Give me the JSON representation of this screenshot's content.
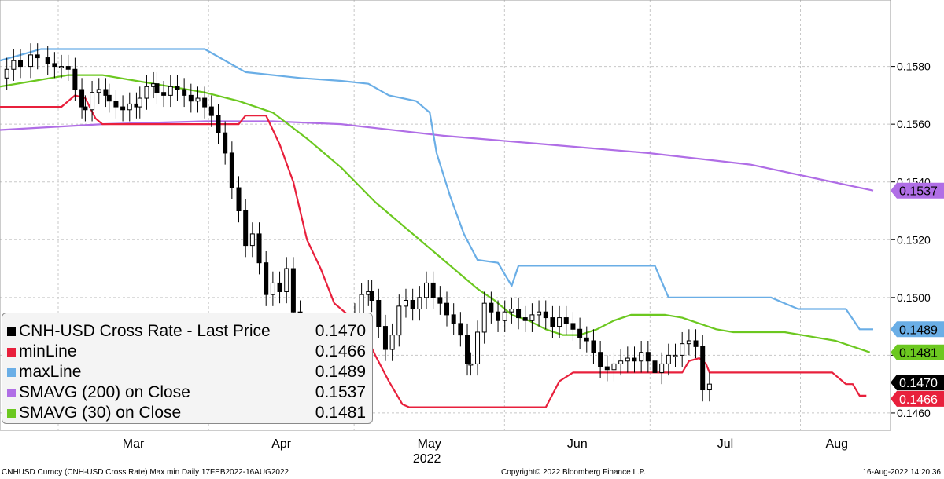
{
  "chart_data": {
    "type": "line",
    "x": {
      "start_date": "2022-02-17",
      "end_date": "2022-08-16",
      "month_labels": [
        "Mar",
        "Apr",
        "May",
        "Jun",
        "Jul",
        "Aug"
      ],
      "year_label": "2022"
    },
    "y_axis": {
      "side": "right",
      "range": [
        0.1454,
        0.1603
      ],
      "ticks": [
        "0.1460",
        "0.1480",
        "0.1500",
        "0.1520",
        "0.1540",
        "0.1560",
        "0.1580"
      ]
    },
    "grid": true,
    "series": [
      {
        "name": "CNH-USD Cross Rate - Last Price",
        "value": "0.1470",
        "color": "#000000",
        "style": "candlestick",
        "closes": [
          [
            2,
            0.1579
          ],
          [
            4,
            0.1582
          ],
          [
            6,
            0.158
          ],
          [
            9,
            0.1584
          ],
          [
            11,
            0.1583
          ],
          [
            14,
            0.1581
          ],
          [
            16,
            0.158
          ],
          [
            18,
            0.158
          ],
          [
            20,
            0.1579
          ],
          [
            22,
            0.1572
          ],
          [
            24,
            0.1566
          ],
          [
            25,
            0.1565
          ],
          [
            27,
            0.1571
          ],
          [
            29,
            0.1572
          ],
          [
            31,
            0.157
          ],
          [
            32,
            0.1568
          ],
          [
            34,
            0.1566
          ],
          [
            36,
            0.1565
          ],
          [
            38,
            0.1567
          ],
          [
            40,
            0.1566
          ],
          [
            41,
            0.1569
          ],
          [
            43,
            0.1573
          ],
          [
            45,
            0.1574
          ],
          [
            46,
            0.1571
          ],
          [
            48,
            0.157
          ],
          [
            50,
            0.1573
          ],
          [
            52,
            0.1572
          ],
          [
            54,
            0.157
          ],
          [
            56,
            0.1568
          ],
          [
            58,
            0.1569
          ],
          [
            60,
            0.1566
          ],
          [
            62,
            0.1563
          ],
          [
            64,
            0.1557
          ],
          [
            66,
            0.155
          ],
          [
            68,
            0.1538
          ],
          [
            70,
            0.153
          ],
          [
            72,
            0.1518
          ],
          [
            74,
            0.1522
          ],
          [
            76,
            0.1512
          ],
          [
            78,
            0.1501
          ],
          [
            80,
            0.1505
          ],
          [
            82,
            0.1502
          ],
          [
            84,
            0.151
          ],
          [
            86,
            0.1495
          ],
          [
            88,
            0.1488
          ],
          [
            90,
            0.1478
          ],
          [
            92,
            0.147
          ],
          [
            94,
            0.1465
          ],
          [
            96,
            0.1476
          ],
          [
            98,
            0.1484
          ],
          [
            100,
            0.1488
          ],
          [
            102,
            0.1488
          ],
          [
            104,
            0.1494
          ],
          [
            106,
            0.1501
          ],
          [
            108,
            0.1502
          ],
          [
            109,
            0.1499
          ],
          [
            111,
            0.149
          ],
          [
            113,
            0.1482
          ],
          [
            115,
            0.1487
          ],
          [
            117,
            0.1497
          ],
          [
            119,
            0.1499
          ],
          [
            121,
            0.1496
          ],
          [
            123,
            0.15
          ],
          [
            125,
            0.1505
          ],
          [
            127,
            0.15
          ],
          [
            129,
            0.1498
          ],
          [
            131,
            0.1494
          ],
          [
            133,
            0.1491
          ],
          [
            135,
            0.1487
          ],
          [
            137,
            0.1477
          ],
          [
            138,
            0.1477
          ],
          [
            140,
            0.1488
          ],
          [
            142,
            0.1498
          ],
          [
            144,
            0.1495
          ],
          [
            146,
            0.1492
          ],
          [
            148,
            0.1495
          ],
          [
            150,
            0.1496
          ],
          [
            152,
            0.1493
          ],
          [
            154,
            0.1492
          ],
          [
            156,
            0.1494
          ],
          [
            158,
            0.1495
          ],
          [
            160,
            0.1493
          ],
          [
            162,
            0.149
          ],
          [
            164,
            0.1493
          ],
          [
            166,
            0.1491
          ],
          [
            168,
            0.1489
          ],
          [
            170,
            0.1486
          ],
          [
            172,
            0.1485
          ],
          [
            174,
            0.1481
          ],
          [
            176,
            0.1476
          ],
          [
            178,
            0.1475
          ],
          [
            180,
            0.1477
          ],
          [
            182,
            0.1478
          ],
          [
            184,
            0.1479
          ],
          [
            186,
            0.1478
          ],
          [
            188,
            0.1481
          ],
          [
            190,
            0.1478
          ],
          [
            192,
            0.1474
          ],
          [
            194,
            0.1477
          ],
          [
            196,
            0.148
          ],
          [
            198,
            0.148
          ],
          [
            200,
            0.1484
          ],
          [
            202,
            0.1485
          ],
          [
            204,
            0.1483
          ],
          [
            206,
            0.1468
          ],
          [
            208,
            0.147
          ]
        ]
      },
      {
        "name": "minLine",
        "value": "0.1466",
        "color": "#e8203c",
        "style": "line",
        "points": [
          [
            0,
            0.1566
          ],
          [
            18,
            0.1566
          ],
          [
            22,
            0.157
          ],
          [
            25,
            0.1569
          ],
          [
            28,
            0.1562
          ],
          [
            30,
            0.156
          ],
          [
            48,
            0.156
          ],
          [
            70,
            0.156
          ],
          [
            72,
            0.1563
          ],
          [
            78,
            0.1563
          ],
          [
            82,
            0.1553
          ],
          [
            86,
            0.154
          ],
          [
            90,
            0.152
          ],
          [
            94,
            0.151
          ],
          [
            98,
            0.1498
          ],
          [
            102,
            0.1494
          ],
          [
            106,
            0.149
          ],
          [
            110,
            0.148
          ],
          [
            114,
            0.1471
          ],
          [
            118,
            0.1463
          ],
          [
            120,
            0.1462
          ],
          [
            160,
            0.1462
          ],
          [
            164,
            0.1471
          ],
          [
            168,
            0.1474
          ],
          [
            200,
            0.1474
          ],
          [
            202,
            0.1478
          ],
          [
            205,
            0.1479
          ],
          [
            207,
            0.1477
          ],
          [
            208,
            0.1474
          ],
          [
            244,
            0.1474
          ],
          [
            248,
            0.147
          ],
          [
            250,
            0.147
          ],
          [
            252,
            0.1466
          ],
          [
            254,
            0.1466
          ]
        ]
      },
      {
        "name": "maxLine",
        "value": "0.1489",
        "color": "#6aaee6",
        "style": "line",
        "points": [
          [
            0,
            0.1582
          ],
          [
            6,
            0.1584
          ],
          [
            12,
            0.1586
          ],
          [
            60,
            0.1586
          ],
          [
            72,
            0.1578
          ],
          [
            88,
            0.1576
          ],
          [
            100,
            0.1575
          ],
          [
            108,
            0.1574
          ],
          [
            114,
            0.157
          ],
          [
            122,
            0.1568
          ],
          [
            126,
            0.1564
          ],
          [
            128,
            0.155
          ],
          [
            132,
            0.1535
          ],
          [
            136,
            0.1522
          ],
          [
            140,
            0.1513
          ],
          [
            146,
            0.1512
          ],
          [
            150,
            0.1504
          ],
          [
            152,
            0.1511
          ],
          [
            192,
            0.1511
          ],
          [
            196,
            0.15
          ],
          [
            226,
            0.15
          ],
          [
            230,
            0.1498
          ],
          [
            234,
            0.1496
          ],
          [
            248,
            0.1496
          ],
          [
            252,
            0.1489
          ],
          [
            256,
            0.1489
          ]
        ]
      },
      {
        "name": "SMAVG (200)  on Close",
        "value": "0.1537",
        "color": "#b06ee6",
        "style": "line",
        "points": [
          [
            0,
            0.1558
          ],
          [
            30,
            0.156
          ],
          [
            60,
            0.1561
          ],
          [
            80,
            0.1561
          ],
          [
            100,
            0.156
          ],
          [
            130,
            0.1556
          ],
          [
            160,
            0.1553
          ],
          [
            190,
            0.155
          ],
          [
            220,
            0.1546
          ],
          [
            240,
            0.1541
          ],
          [
            256,
            0.1537
          ]
        ]
      },
      {
        "name": "SMAVG (30)  on Close",
        "value": "0.1481",
        "color": "#6cc820",
        "style": "line",
        "points": [
          [
            0,
            0.1573
          ],
          [
            10,
            0.1575
          ],
          [
            20,
            0.1577
          ],
          [
            30,
            0.1577
          ],
          [
            40,
            0.1575
          ],
          [
            50,
            0.1573
          ],
          [
            60,
            0.1571
          ],
          [
            70,
            0.1568
          ],
          [
            80,
            0.1564
          ],
          [
            90,
            0.1555
          ],
          [
            100,
            0.1545
          ],
          [
            110,
            0.1533
          ],
          [
            120,
            0.1523
          ],
          [
            130,
            0.1513
          ],
          [
            140,
            0.1503
          ],
          [
            145,
            0.1499
          ],
          [
            150,
            0.1494
          ],
          [
            155,
            0.1492
          ],
          [
            160,
            0.1489
          ],
          [
            165,
            0.1487
          ],
          [
            170,
            0.1487
          ],
          [
            175,
            0.1489
          ],
          [
            180,
            0.1492
          ],
          [
            185,
            0.1494
          ],
          [
            190,
            0.1494
          ],
          [
            195,
            0.1494
          ],
          [
            200,
            0.1493
          ],
          [
            205,
            0.1491
          ],
          [
            210,
            0.1489
          ],
          [
            215,
            0.1488
          ],
          [
            220,
            0.1488
          ],
          [
            225,
            0.1488
          ],
          [
            230,
            0.1488
          ],
          [
            235,
            0.1487
          ],
          [
            240,
            0.1486
          ],
          [
            245,
            0.1485
          ],
          [
            250,
            0.1483
          ],
          [
            255,
            0.1481
          ]
        ]
      }
    ],
    "legend": {
      "position": "bottom-left",
      "entries": [
        {
          "name": "CNH-USD Cross Rate - Last Price",
          "value": "0.1470"
        },
        {
          "name": "minLine",
          "value": "0.1466"
        },
        {
          "name": "maxLine",
          "value": "0.1489"
        },
        {
          "name": "SMAVG (200)  on Close",
          "value": "0.1537"
        },
        {
          "name": "SMAVG (30)  on Close",
          "value": "0.1481"
        }
      ]
    },
    "value_tags": [
      {
        "label": "0.1537",
        "color": "#b06ee6",
        "text_color": "#000000",
        "value": 0.1537
      },
      {
        "label": "0.1489",
        "color": "#6aaee6",
        "text_color": "#000000",
        "value": 0.1489
      },
      {
        "label": "0.1481",
        "color": "#6cc820",
        "text_color": "#000000",
        "value": 0.1481
      },
      {
        "label": "0.1470",
        "color": "#000000",
        "text_color": "#ffffff",
        "value": 0.147
      },
      {
        "label": "0.1466",
        "color": "#e8203c",
        "text_color": "#ffffff",
        "value": 0.1466
      }
    ]
  },
  "footer": {
    "left": "CNHUSD Curncy (CNH-USD Cross Rate) Max min  Daily 17FEB2022-16AUG2022",
    "center": "Copyright© 2022 Bloomberg Finance L.P.",
    "right": "16-Aug-2022 14:20:36"
  }
}
